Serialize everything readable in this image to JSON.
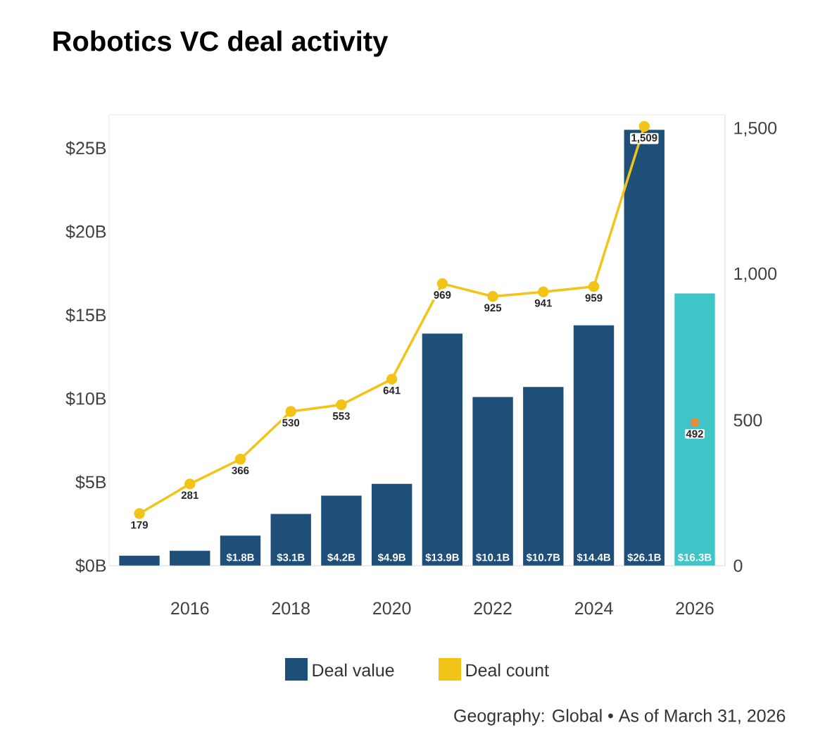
{
  "chart_data": {
    "type": "bar",
    "title": "Robotics VC deal activity",
    "categories": [
      null,
      "2016",
      null,
      "2018",
      null,
      "2020",
      null,
      "2022",
      null,
      "2024",
      null,
      "2026"
    ],
    "series": [
      {
        "name": "Deal value",
        "colors": [
          "#1f4e79",
          "#1f4e79",
          "#1f4e79",
          "#1f4e79",
          "#1f4e79",
          "#1f4e79",
          "#1f4e79",
          "#1f4e79",
          "#1f4e79",
          "#1f4e79",
          "#1f4e79",
          "#3fc4c8"
        ],
        "values": [
          0.6,
          0.9,
          1.8,
          3.1,
          4.2,
          4.9,
          13.9,
          10.1,
          10.7,
          14.4,
          26.1,
          16.3
        ],
        "value_labels": [
          null,
          null,
          "$1.8B",
          "$3.1B",
          "$4.2B",
          "$4.9B",
          "$13.9B",
          "$10.1B",
          "$10.7B",
          "$14.4B",
          "$26.1B",
          "$16.3B"
        ]
      },
      {
        "name": "Deal count",
        "type": "line",
        "axis": "y2",
        "color": "#f2c417",
        "marker": "circle",
        "values": [
          179,
          281,
          366,
          530,
          553,
          641,
          969,
          925,
          941,
          959,
          1509,
          null
        ],
        "value_labels": [
          "179",
          "281",
          "366",
          "530",
          "553",
          "641",
          "969",
          "925",
          "941",
          "959",
          "1,509",
          null
        ]
      },
      {
        "type": "scatter",
        "axis": "y2",
        "color": "#e8883a",
        "marker": "circle",
        "values": [
          null,
          null,
          null,
          null,
          null,
          null,
          null,
          null,
          null,
          null,
          null,
          492
        ],
        "value_labels": [
          null,
          null,
          null,
          null,
          null,
          null,
          null,
          null,
          null,
          null,
          null,
          "492"
        ]
      }
    ],
    "ylim": [
      0,
      27
    ],
    "yticks": [
      {
        "value": 0,
        "label": "$0B"
      },
      {
        "value": 5,
        "label": "$5B"
      },
      {
        "value": 10,
        "label": "$10B"
      },
      {
        "value": 15,
        "label": "$15B"
      },
      {
        "value": 20,
        "label": "$20B"
      },
      {
        "value": 25,
        "label": "$25B"
      }
    ],
    "y2lim": [
      0,
      1549
    ],
    "y2ticks": [
      0,
      500,
      {
        "value": 1000,
        "label": "1,000"
      },
      {
        "value": 1500,
        "label": "1,500"
      }
    ],
    "legend": "bottom",
    "grid": false,
    "annotations": [
      "Geography: Global • As of March 31, 2026"
    ]
  }
}
